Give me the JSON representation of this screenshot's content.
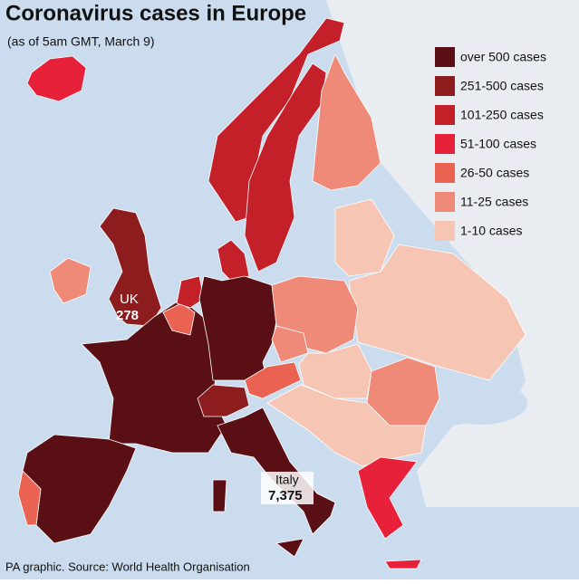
{
  "header": {
    "title": "Coronavirus cases in Europe",
    "subtitle": "(as of 5am GMT, March 9)"
  },
  "legend": [
    {
      "label": "over 500 cases",
      "color": "#5a0f14"
    },
    {
      "label": "251-500 cases",
      "color": "#8c1c1e"
    },
    {
      "label": "101-250 cases",
      "color": "#c4202a"
    },
    {
      "label": "51-100 cases",
      "color": "#e8213a"
    },
    {
      "label": "26-50 cases",
      "color": "#ea6352"
    },
    {
      "label": "11-25 cases",
      "color": "#f08a78"
    },
    {
      "label": "1-10 cases",
      "color": "#f6c5b4"
    }
  ],
  "callouts": [
    {
      "name": "UK",
      "value": "278"
    },
    {
      "name": "Italy",
      "value": "7,375"
    }
  ],
  "source": "PA graphic. Source: World Health Organisation"
}
